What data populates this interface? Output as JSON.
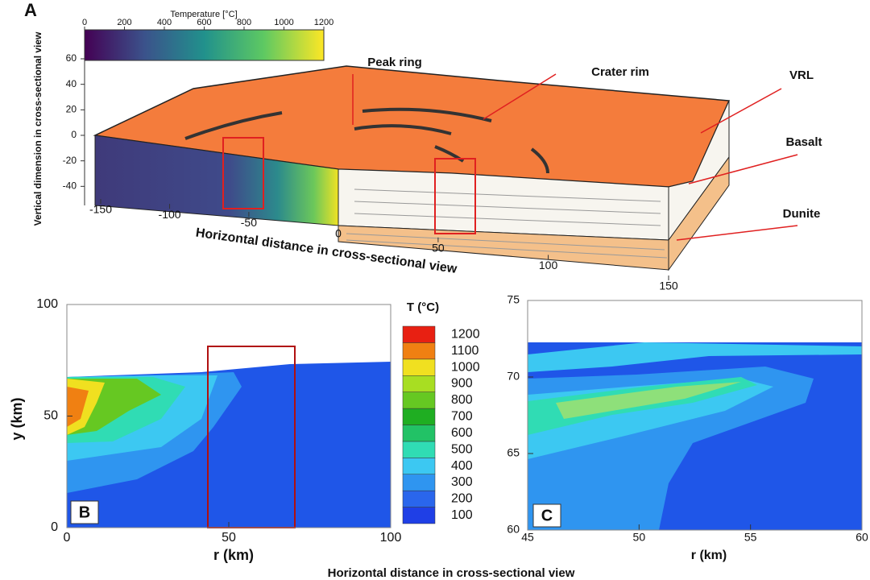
{
  "panel_a": {
    "label": "A",
    "colorbar": {
      "title": "Temperature [°C]",
      "lim": [
        0,
        1200
      ],
      "ticks": [
        0,
        200,
        400,
        600,
        800,
        1000,
        1200
      ]
    },
    "yaxis": {
      "label": "Vertical dimension in cross-sectional view",
      "lim": [
        -50,
        60
      ],
      "ticks": [
        60,
        40,
        20,
        0,
        -20,
        -40
      ]
    },
    "xaxis": {
      "label": "Horizontal distance in cross-sectional view",
      "lim": [
        -150,
        150
      ],
      "ticks": [
        -150,
        -100,
        -50,
        0,
        50,
        100,
        150
      ]
    },
    "annotations": [
      "Peak ring",
      "Crater rim",
      "VRL",
      "Basalt",
      "Dunite"
    ]
  },
  "panel_b": {
    "label": "B",
    "xlabel": "r (km)",
    "ylabel": "y (km)",
    "xlim": [
      0,
      100
    ],
    "xticks": [
      0,
      50,
      100
    ],
    "ylim": [
      0,
      100
    ],
    "yticks": [
      0,
      50,
      100
    ],
    "colorbar": {
      "title": "T (°C)",
      "levels": [
        100,
        200,
        300,
        400,
        500,
        600,
        700,
        800,
        900,
        1000,
        1100,
        1200
      ],
      "colors": [
        "#1f3fe6",
        "#2a66ec",
        "#2f95f0",
        "#3cc8f2",
        "#30dcb4",
        "#22c266",
        "#1fae22",
        "#66c822",
        "#a8de22",
        "#f0e020",
        "#f08012",
        "#e82012"
      ]
    }
  },
  "panel_c": {
    "label": "C",
    "xlabel": "r (km)",
    "xlim": [
      45,
      60
    ],
    "xticks": [
      45,
      50,
      55,
      60
    ],
    "ylim": [
      60,
      75
    ],
    "yticks": [
      60,
      65,
      70,
      75
    ]
  },
  "caption": "Horizontal distance in cross-sectional view"
}
